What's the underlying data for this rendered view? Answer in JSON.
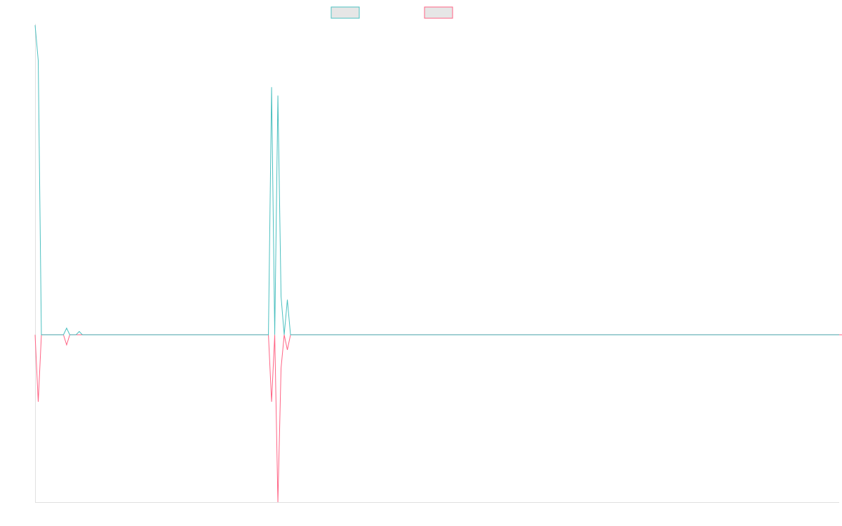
{
  "colors": {
    "series_1": "#4bc0c0",
    "series_2": "#ff6384",
    "legend_fill": "#e6e6e6",
    "axis": "#e0e0e0"
  },
  "legend": {
    "placement": "top-center",
    "items": [
      {
        "label": ""
      },
      {
        "label": ""
      }
    ]
  },
  "chart_data": {
    "type": "line",
    "title": "",
    "xlabel": "",
    "ylabel": "",
    "grid": false,
    "tick_labels_shown": false,
    "ylim": [
      -100,
      185
    ],
    "series": [
      {
        "values": [
          185,
          164,
          0,
          0,
          0,
          0,
          0,
          0,
          0,
          0,
          4,
          0,
          0,
          0,
          2,
          0,
          0,
          0,
          0,
          0,
          0,
          0,
          0,
          0,
          0,
          0,
          0,
          0,
          0,
          0,
          0,
          0,
          0,
          0,
          0,
          0,
          0,
          0,
          0,
          0,
          0,
          0,
          0,
          0,
          0,
          0,
          0,
          0,
          0,
          0,
          0,
          0,
          0,
          0,
          0,
          0,
          0,
          0,
          0,
          0,
          0,
          0,
          0,
          0,
          0,
          0,
          0,
          0,
          0,
          0,
          0,
          0,
          0,
          0,
          0,
          148,
          0,
          143,
          23,
          0,
          21,
          0,
          0,
          0,
          0,
          0,
          0,
          0,
          0,
          0,
          0,
          0,
          0,
          0,
          0,
          0,
          0,
          0,
          0,
          0,
          0,
          0,
          0,
          0,
          0,
          0,
          0,
          0,
          0,
          0,
          0,
          0,
          0,
          0,
          0,
          0,
          0,
          0,
          0,
          0,
          0,
          0,
          0,
          0,
          0,
          0,
          0,
          0,
          0,
          0,
          0,
          0,
          0,
          0,
          0,
          0,
          0,
          0,
          0,
          0,
          0,
          0,
          0,
          0,
          0,
          0,
          0,
          0,
          0,
          0,
          0,
          0,
          0,
          0,
          0,
          0,
          0,
          0,
          0,
          0,
          0,
          0,
          0,
          0,
          0,
          0,
          0,
          0,
          0,
          0,
          0,
          0,
          0,
          0,
          0,
          0,
          0,
          0,
          0,
          0,
          0,
          0,
          0,
          0,
          0,
          0,
          0,
          0,
          0,
          0,
          0,
          0,
          0,
          0,
          0,
          0,
          0,
          0,
          0,
          0,
          0,
          0,
          0,
          0,
          0,
          0,
          0,
          0,
          0,
          0,
          0,
          0,
          0,
          0,
          0,
          0,
          0,
          0,
          0,
          0,
          0,
          0,
          0,
          0,
          0,
          0,
          0,
          0,
          0,
          0,
          0,
          0,
          0,
          0,
          0,
          0,
          0,
          0,
          0,
          0,
          0,
          0,
          0,
          0,
          0,
          0,
          0,
          0,
          0,
          0,
          0,
          0,
          0,
          0,
          0,
          0
        ]
      },
      {
        "values": [
          0,
          -40,
          0,
          0,
          0,
          0,
          0,
          0,
          0,
          0,
          -6,
          0,
          0,
          0,
          0,
          0,
          0,
          0,
          0,
          0,
          0,
          0,
          0,
          0,
          0,
          0,
          0,
          0,
          0,
          0,
          0,
          0,
          0,
          0,
          0,
          0,
          0,
          0,
          0,
          0,
          0,
          0,
          0,
          0,
          0,
          0,
          0,
          0,
          0,
          0,
          0,
          0,
          0,
          0,
          0,
          0,
          0,
          0,
          0,
          0,
          0,
          0,
          0,
          0,
          0,
          0,
          0,
          0,
          0,
          0,
          0,
          0,
          0,
          0,
          0,
          -40,
          0,
          -100,
          -20,
          0,
          -9,
          0,
          0,
          0,
          0,
          0,
          0,
          0,
          0,
          0,
          0,
          0,
          0,
          0,
          0,
          0,
          0,
          0,
          0,
          0,
          0,
          0,
          0,
          0,
          0,
          0,
          0,
          0,
          0,
          0,
          0,
          0,
          0,
          0,
          0,
          0,
          0,
          0,
          0,
          0,
          0,
          0,
          0,
          0,
          0,
          0,
          0,
          0,
          0,
          0,
          0,
          0,
          0,
          0,
          0,
          0,
          0,
          0,
          0,
          0,
          0,
          0,
          0,
          0,
          0,
          0,
          0,
          0,
          0,
          0,
          0,
          0,
          0,
          0,
          0,
          0,
          0,
          0,
          0,
          0,
          0,
          0,
          0,
          0,
          0,
          0,
          0,
          0,
          0,
          0,
          0,
          0,
          0,
          0,
          0,
          0,
          0,
          0,
          0,
          0,
          0,
          0,
          0,
          0,
          0,
          0,
          0,
          0,
          0,
          0,
          0,
          0,
          0,
          0,
          0,
          0,
          0,
          0,
          0,
          0,
          0,
          0,
          0,
          0,
          0,
          0,
          0,
          0,
          0,
          0,
          0,
          0,
          0,
          0,
          0,
          0,
          0,
          0,
          0,
          0,
          0,
          0,
          0,
          0,
          0,
          0,
          0,
          0,
          0,
          0,
          0,
          0,
          0,
          0,
          0,
          0,
          0,
          0,
          0,
          0,
          0,
          0,
          0,
          0,
          0,
          0,
          0,
          0,
          0,
          0,
          0,
          0,
          0,
          0,
          0,
          0,
          0,
          0,
          0,
          0,
          0,
          0,
          0,
          0,
          0,
          0
        ]
      }
    ]
  }
}
